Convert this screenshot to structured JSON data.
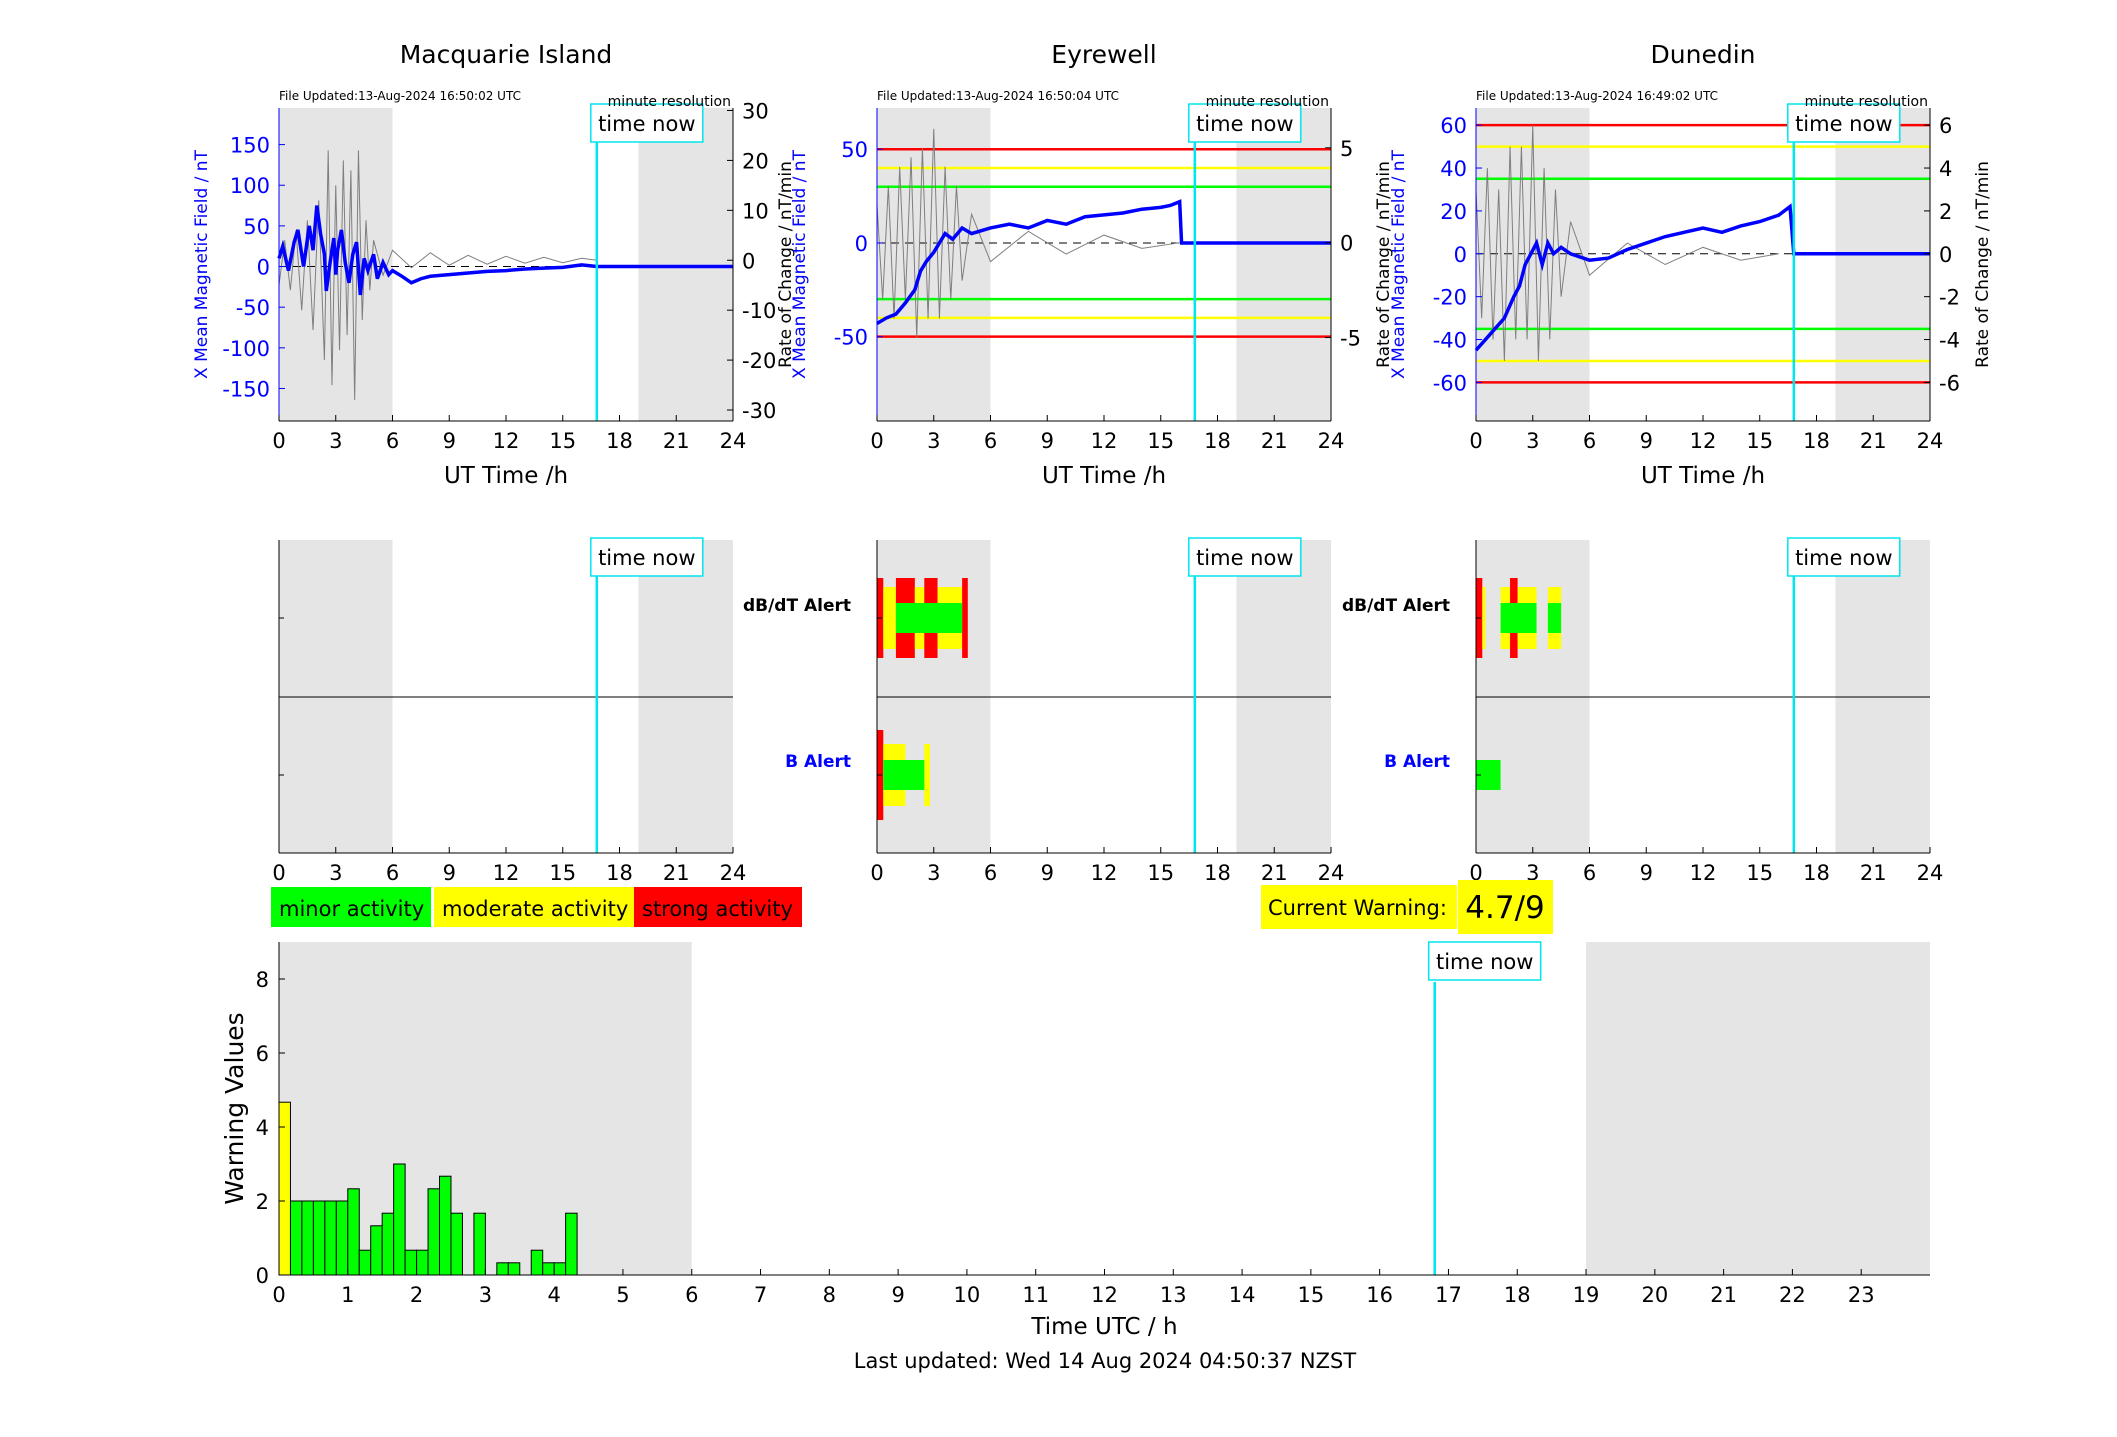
{
  "footer": {
    "last_updated": "Last updated: Wed 14 Aug 2024 04:50:37 NZST"
  },
  "colors": {
    "field": "#0000ff",
    "rate": "#808080",
    "now": "#00e5ee",
    "minor": "#00ff00",
    "moderate": "#ffff00",
    "strong": "#ff0000",
    "night": "#e5e5e5"
  },
  "legend": {
    "minor": "minor activity",
    "moderate": "moderate activity",
    "strong": "strong activity"
  },
  "current_warning": {
    "label": "Current Warning:",
    "value": "4.7/9"
  },
  "labels": {
    "time_now": "time now",
    "minute_resolution": "minute resolution",
    "x_label": "UT Time /h",
    "y_left": "X Mean Magnetic Field / nT",
    "y_right": "Rate of Change / nT/min",
    "dbdt_alert": "dB/dT Alert",
    "b_alert": "B Alert",
    "warning_x": "Time UTC / h",
    "warning_y": "Warning Values"
  },
  "chart_data": [
    {
      "type": "line",
      "title": "Macquarie Island",
      "file_updated": "File Updated:13-Aug-2024 16:50:02 UTC",
      "xlim": [
        0,
        24
      ],
      "xticks": [
        0,
        3,
        6,
        9,
        12,
        15,
        18,
        21,
        24
      ],
      "ylim_left": [
        -190,
        195
      ],
      "yticks_left": [
        -150,
        -100,
        -50,
        0,
        50,
        100,
        150
      ],
      "ylim_right": [
        -32.2,
        30.5
      ],
      "yticks_right": [
        -30,
        -20,
        -10,
        0,
        10,
        20,
        30
      ],
      "night_shading": [
        [
          0,
          6
        ],
        [
          19,
          24
        ]
      ],
      "time_now": 16.8,
      "thresholds": [],
      "series": [
        {
          "axis": "left",
          "x": [
            0,
            0.2,
            0.5,
            0.8,
            1.0,
            1.3,
            1.6,
            1.8,
            2.0,
            2.2,
            2.4,
            2.5,
            2.7,
            2.9,
            3.0,
            3.1,
            3.3,
            3.5,
            3.7,
            3.9,
            4.1,
            4.3,
            4.5,
            4.7,
            5.0,
            5.2,
            5.5,
            5.8,
            6.0,
            6.5,
            7.0,
            7.5,
            8,
            9,
            10,
            11,
            12,
            13,
            14,
            15,
            16,
            16.8,
            17,
            24
          ],
          "y": [
            10,
            25,
            -5,
            30,
            45,
            0,
            50,
            20,
            75,
            40,
            15,
            -30,
            5,
            35,
            -10,
            20,
            45,
            5,
            -20,
            15,
            30,
            -35,
            10,
            -5,
            15,
            -15,
            5,
            -10,
            -5,
            -12,
            -20,
            -15,
            -12,
            -10,
            -8,
            -6,
            -5,
            -3,
            -2,
            -1,
            2,
            0,
            0,
            0
          ]
        },
        {
          "axis": "right",
          "x": [
            0,
            0.3,
            0.6,
            0.9,
            1.2,
            1.5,
            1.8,
            2.1,
            2.4,
            2.6,
            2.8,
            3.0,
            3.2,
            3.4,
            3.6,
            3.8,
            4.0,
            4.2,
            4.4,
            4.6,
            4.8,
            5.0,
            5.5,
            6,
            7,
            8,
            9,
            10,
            11,
            12,
            13,
            14,
            15,
            16,
            16.8
          ],
          "y": [
            -5,
            4,
            -6,
            6,
            -10,
            8,
            -14,
            12,
            -20,
            22,
            -25,
            15,
            -18,
            20,
            -15,
            18,
            -28,
            22,
            -12,
            8,
            -6,
            4,
            -3,
            2,
            -1.5,
            1.5,
            -1,
            1,
            -0.8,
            0.8,
            -0.6,
            0.6,
            -0.5,
            0.4,
            0
          ]
        }
      ]
    },
    {
      "type": "line",
      "title": "Eyrewell",
      "file_updated": "File Updated:13-Aug-2024 16:50:04 UTC",
      "xlim": [
        0,
        24
      ],
      "xticks": [
        0,
        3,
        6,
        9,
        12,
        15,
        18,
        21,
        24
      ],
      "ylim_left": [
        -95,
        72
      ],
      "yticks_left": [
        -50,
        0,
        50
      ],
      "ylim_right": [
        -9.4,
        7.1
      ],
      "yticks_right": [
        -5,
        0,
        5
      ],
      "night_shading": [
        [
          0,
          6
        ],
        [
          19,
          24
        ]
      ],
      "time_now": 16.8,
      "thresholds": [
        {
          "value": 50,
          "color": "red"
        },
        {
          "value": 40,
          "color": "yellow"
        },
        {
          "value": 30,
          "color": "lime"
        },
        {
          "value": -30,
          "color": "lime"
        },
        {
          "value": -40,
          "color": "yellow"
        },
        {
          "value": -50,
          "color": "red"
        }
      ],
      "series": [
        {
          "axis": "left",
          "x": [
            0,
            0.5,
            1.0,
            1.5,
            2.0,
            2.3,
            2.6,
            3.0,
            3.3,
            3.6,
            4.0,
            4.5,
            5,
            6,
            7,
            8,
            9,
            10,
            11,
            12,
            13,
            14,
            15,
            15.5,
            16,
            16.1,
            24
          ],
          "y": [
            -43,
            -40,
            -38,
            -32,
            -25,
            -15,
            -10,
            -5,
            0,
            5,
            2,
            8,
            5,
            8,
            10,
            8,
            12,
            10,
            14,
            15,
            16,
            18,
            19,
            20,
            22,
            0,
            0
          ]
        },
        {
          "axis": "right",
          "x": [
            0,
            0.3,
            0.6,
            0.9,
            1.2,
            1.5,
            1.8,
            2.1,
            2.4,
            2.7,
            3.0,
            3.3,
            3.6,
            3.9,
            4.2,
            4.5,
            5,
            6,
            8,
            10,
            12,
            14,
            16
          ],
          "y": [
            2,
            -3,
            3,
            -4,
            4,
            -3,
            4.5,
            -5,
            5,
            -4,
            6,
            -4,
            4,
            -3,
            3,
            -2,
            1.5,
            -1,
            0.6,
            -0.6,
            0.4,
            -0.3,
            0
          ]
        }
      ]
    },
    {
      "type": "line",
      "title": "Dunedin",
      "file_updated": "File Updated:13-Aug-2024 16:49:02 UTC",
      "xlim": [
        0,
        24
      ],
      "xticks": [
        0,
        3,
        6,
        9,
        12,
        15,
        18,
        21,
        24
      ],
      "ylim_left": [
        -78,
        68
      ],
      "yticks_left": [
        -60,
        -40,
        -20,
        0,
        20,
        40,
        60
      ],
      "ylim_right": [
        -7.8,
        6.8
      ],
      "yticks_right": [
        -6,
        -4,
        -2,
        0,
        2,
        4,
        6
      ],
      "night_shading": [
        [
          0,
          6
        ],
        [
          19,
          24
        ]
      ],
      "time_now": 16.8,
      "thresholds": [
        {
          "value": 60,
          "color": "red"
        },
        {
          "value": 50,
          "color": "yellow"
        },
        {
          "value": 35,
          "color": "lime"
        },
        {
          "value": -35,
          "color": "lime"
        },
        {
          "value": -50,
          "color": "yellow"
        },
        {
          "value": -60,
          "color": "red"
        }
      ],
      "series": [
        {
          "axis": "left",
          "x": [
            0,
            0.5,
            1.0,
            1.5,
            2.0,
            2.3,
            2.6,
            2.9,
            3.2,
            3.5,
            3.8,
            4.1,
            4.5,
            5,
            6,
            7,
            8,
            9,
            10,
            11,
            12,
            13,
            14,
            15,
            16,
            16.6,
            16.8,
            24
          ],
          "y": [
            -45,
            -40,
            -35,
            -30,
            -20,
            -15,
            -5,
            0,
            5,
            -5,
            5,
            0,
            3,
            0,
            -3,
            -2,
            2,
            5,
            8,
            10,
            12,
            10,
            13,
            15,
            18,
            22,
            0,
            0
          ]
        },
        {
          "axis": "right",
          "x": [
            0,
            0.3,
            0.6,
            0.9,
            1.2,
            1.5,
            1.8,
            2.1,
            2.4,
            2.7,
            3.0,
            3.3,
            3.6,
            3.9,
            4.2,
            4.5,
            5,
            6,
            8,
            10,
            12,
            14,
            16
          ],
          "y": [
            3,
            -3,
            4,
            -4,
            3,
            -5,
            5,
            -4,
            5,
            -4,
            6,
            -5,
            4,
            -4,
            3,
            -2,
            1.5,
            -1,
            0.5,
            -0.5,
            0.3,
            -0.3,
            0
          ]
        }
      ]
    },
    {
      "type": "bar",
      "title": "",
      "xlabel": "Time UTC / h",
      "ylabel": "Warning Values",
      "xlim": [
        0,
        24
      ],
      "xticks": [
        0,
        1,
        2,
        3,
        4,
        5,
        6,
        7,
        8,
        9,
        10,
        11,
        12,
        13,
        14,
        15,
        16,
        17,
        18,
        19,
        20,
        21,
        22,
        23
      ],
      "ylim": [
        0,
        9
      ],
      "yticks": [
        0,
        2,
        4,
        6,
        8
      ],
      "night_shading": [
        [
          0,
          6
        ],
        [
          19,
          24
        ]
      ],
      "time_now": 16.8,
      "bar_width": 0.1667,
      "x": [
        0,
        0.1667,
        0.3333,
        0.5,
        0.6667,
        0.8333,
        1.0,
        1.1667,
        1.3333,
        1.5,
        1.6667,
        1.8333,
        2.0,
        2.1667,
        2.3333,
        2.5,
        2.6667,
        2.8333,
        3.0,
        3.1667,
        3.3333,
        3.5,
        3.6667,
        3.8333,
        4.0,
        4.1667
      ],
      "values": [
        4.67,
        2,
        2,
        2,
        2,
        2,
        2.33,
        0.67,
        1.33,
        1.67,
        3,
        0.67,
        0.67,
        2.33,
        2.67,
        1.67,
        0,
        1.67,
        0,
        0.33,
        0.33,
        0,
        0.67,
        0.33,
        0.33,
        1.67
      ],
      "levels": [
        "moderate",
        "minor",
        "minor",
        "minor",
        "minor",
        "minor",
        "minor",
        "minor",
        "minor",
        "minor",
        "minor",
        "minor",
        "minor",
        "minor",
        "minor",
        "minor",
        "minor",
        "minor",
        "minor",
        "minor",
        "minor",
        "minor",
        "minor",
        "minor",
        "minor",
        "minor"
      ]
    }
  ],
  "alerts": [
    {
      "dbdt": [],
      "b": []
    },
    {
      "dbdt": [
        [
          0,
          0.333,
          "strong"
        ],
        [
          0.333,
          1.0,
          "moderate"
        ],
        [
          1.0,
          2.0,
          "strong"
        ],
        [
          2.0,
          2.5,
          "moderate"
        ],
        [
          2.5,
          3.2,
          "strong"
        ],
        [
          3.2,
          4.5,
          "moderate"
        ],
        [
          4.5,
          4.8,
          "strong"
        ]
      ],
      "b": [
        [
          0,
          0.333,
          "strong"
        ],
        [
          0.333,
          1.5,
          "moderate"
        ],
        [
          1.5,
          2.5,
          "minor"
        ],
        [
          2.5,
          2.8,
          "moderate"
        ]
      ]
    },
    {
      "dbdt": [
        [
          0,
          0.333,
          "strong"
        ],
        [
          0.333,
          0.5,
          "moderate"
        ],
        [
          1.3,
          1.8,
          "moderate"
        ],
        [
          1.8,
          2.2,
          "strong"
        ],
        [
          2.2,
          3.2,
          "moderate"
        ],
        [
          3.8,
          4.5,
          "moderate"
        ]
      ],
      "b": [
        [
          0,
          1.3,
          "minor"
        ]
      ]
    }
  ]
}
